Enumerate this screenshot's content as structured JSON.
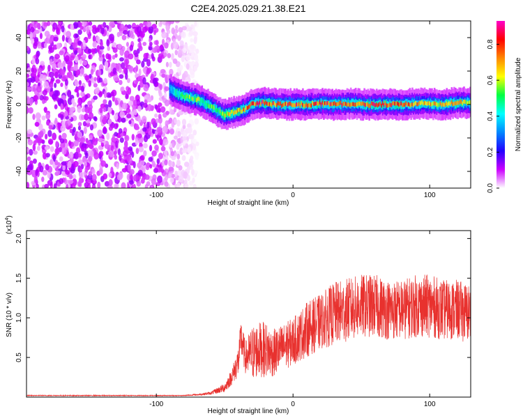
{
  "title": "C2E4.2025.029.21.38.E21",
  "chart_data": [
    {
      "type": "heatmap",
      "xlabel": "Height of straight line (km)",
      "ylabel": "Frequency (Hz)",
      "xlim": [
        -195,
        130
      ],
      "ylim": [
        -50,
        50
      ],
      "x_ticks": [
        "-100",
        "0",
        "100"
      ],
      "y_ticks": [
        "-40",
        "-20",
        "0",
        "20",
        "40"
      ],
      "x_tick_values": [
        -100,
        0,
        100
      ],
      "y_tick_values": [
        -40,
        -20,
        0,
        20,
        40
      ],
      "colorbar": {
        "label": "Normalized spectral amplitude",
        "ticks": [
          "0.0",
          "0.2",
          "0.4",
          "0.6",
          "0.8"
        ],
        "tick_values": [
          0,
          0.2,
          0.4,
          0.6,
          0.8
        ],
        "range": [
          0,
          0.93
        ],
        "colormap": [
          "#ffffff",
          "#cc00ff",
          "#2200ff",
          "#0088ff",
          "#00ffff",
          "#00ff44",
          "#ffff00",
          "#ff8800",
          "#ff0000",
          "#ff00cc"
        ]
      },
      "noise_region_x": [
        -195,
        -70
      ],
      "ridge": {
        "x": [
          -90,
          -80,
          -70,
          -60,
          -55,
          -50,
          -45,
          -40,
          -35,
          -30,
          -25,
          -20,
          -10,
          0,
          10,
          20,
          30,
          40,
          50,
          60,
          70,
          80,
          90,
          100,
          110,
          120,
          130
        ],
        "y": [
          9,
          5,
          3,
          -1,
          -4,
          -6,
          -5,
          -4,
          -3,
          0,
          1,
          1,
          0,
          0,
          0,
          0.5,
          0,
          0.5,
          0,
          0,
          0,
          0,
          0.5,
          0.5,
          0,
          1,
          1
        ],
        "amplitude": [
          0.35,
          0.55,
          0.6,
          0.55,
          0.6,
          0.65,
          0.7,
          0.7,
          0.75,
          0.8,
          0.85,
          0.85,
          0.8,
          0.85,
          0.8,
          0.85,
          0.8,
          0.85,
          0.8,
          0.85,
          0.8,
          0.85,
          0.75,
          0.7,
          0.7,
          0.7,
          0.65
        ]
      }
    },
    {
      "type": "line",
      "xlabel": "Height of straight line (km)",
      "ylabel": "SNR (10 * v/v)",
      "y_multiplier": "(x10",
      "y_multiplier_exp": "4",
      "xlim": [
        -195,
        130
      ],
      "ylim": [
        0,
        2.1
      ],
      "x_ticks": [
        "-100",
        "0",
        "100"
      ],
      "y_ticks": [
        "0.5",
        "1.0",
        "1.5",
        "2.0"
      ],
      "x_tick_values": [
        -100,
        0,
        100
      ],
      "y_tick_values": [
        0.5,
        1.0,
        1.5,
        2.0
      ],
      "color": "#e8312e",
      "series": [
        {
          "x": [
            -195,
            -150,
            -100,
            -80,
            -70,
            -60,
            -50,
            -45,
            -40,
            -38,
            -35,
            -30,
            -25,
            -20,
            -15,
            -10,
            -5,
            0,
            10,
            20,
            30,
            40,
            50,
            60,
            70,
            80,
            90,
            100,
            110,
            120,
            130
          ],
          "y": [
            0.02,
            0.02,
            0.02,
            0.02,
            0.03,
            0.05,
            0.12,
            0.25,
            0.45,
            0.75,
            0.5,
            0.55,
            0.6,
            0.6,
            0.55,
            0.6,
            0.65,
            0.7,
            0.85,
            0.95,
            1.05,
            1.1,
            1.15,
            1.15,
            1.1,
            1.1,
            1.15,
            1.15,
            1.1,
            1.1,
            1.05
          ],
          "spread": [
            0.005,
            0.005,
            0.005,
            0.005,
            0.01,
            0.02,
            0.06,
            0.1,
            0.2,
            0.25,
            0.2,
            0.35,
            0.35,
            0.35,
            0.3,
            0.3,
            0.3,
            0.3,
            0.35,
            0.35,
            0.4,
            0.4,
            0.4,
            0.4,
            0.38,
            0.38,
            0.4,
            0.4,
            0.38,
            0.38,
            0.38
          ]
        }
      ]
    }
  ]
}
